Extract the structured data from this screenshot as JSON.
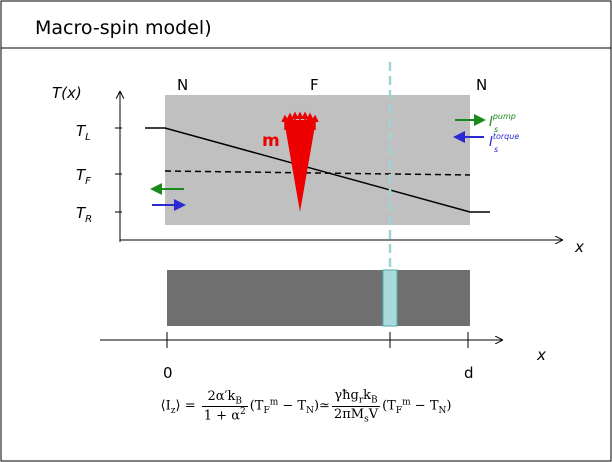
{
  "title": "Macro-spin model)",
  "upper_diagram": {
    "y_axis_label": "T(x)",
    "x_axis_label": "x",
    "region_labels": [
      "N",
      "F",
      "N"
    ],
    "temperature_labels": [
      {
        "base": "T",
        "sub": "L"
      },
      {
        "base": "T",
        "sub": "F"
      },
      {
        "base": "T",
        "sub": "R"
      }
    ],
    "magnetization_label": "m",
    "currents": [
      {
        "base": "I",
        "sub": "s",
        "sup": "pump"
      },
      {
        "base": "I",
        "sub": "s",
        "sup": "torque"
      }
    ]
  },
  "lower_diagram": {
    "x_axis_label": "x",
    "tick_labels": [
      "0",
      "d"
    ]
  },
  "formula": {
    "lhs": [
      "⟨I",
      "z",
      "⟩ ="
    ],
    "term1": {
      "numerator": [
        "2α′k",
        "B"
      ],
      "denominator": [
        "1 + α",
        "2"
      ]
    },
    "factor": [
      "(T",
      "F",
      "m",
      " − T",
      "N",
      ")"
    ],
    "approx": "≃",
    "term2": {
      "numerator": [
        "γħg",
        "r",
        "k",
        "B"
      ],
      "denominator": [
        "2πM",
        "s",
        "V"
      ]
    }
  }
}
